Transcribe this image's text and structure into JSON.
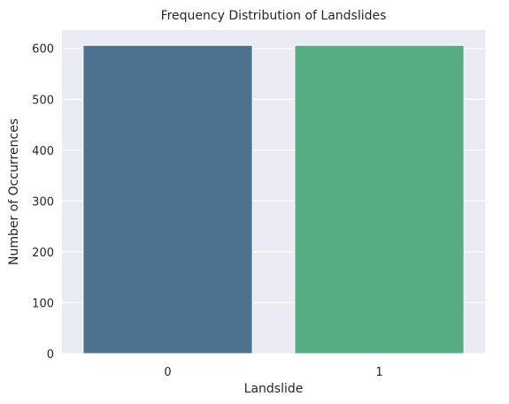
{
  "chart_data": {
    "type": "bar",
    "title": "Frequency Distribution of Landslides",
    "xlabel": "Landslide",
    "ylabel": "Number of Occurrences",
    "categories": [
      "0",
      "1"
    ],
    "values": [
      606,
      606
    ],
    "colors": [
      "#4c7290",
      "#56ad82"
    ],
    "ylim": [
      0,
      636
    ],
    "yticks": [
      0,
      100,
      200,
      300,
      400,
      500,
      600
    ],
    "grid": true,
    "background": "#eaeaf2",
    "legend": "none"
  }
}
